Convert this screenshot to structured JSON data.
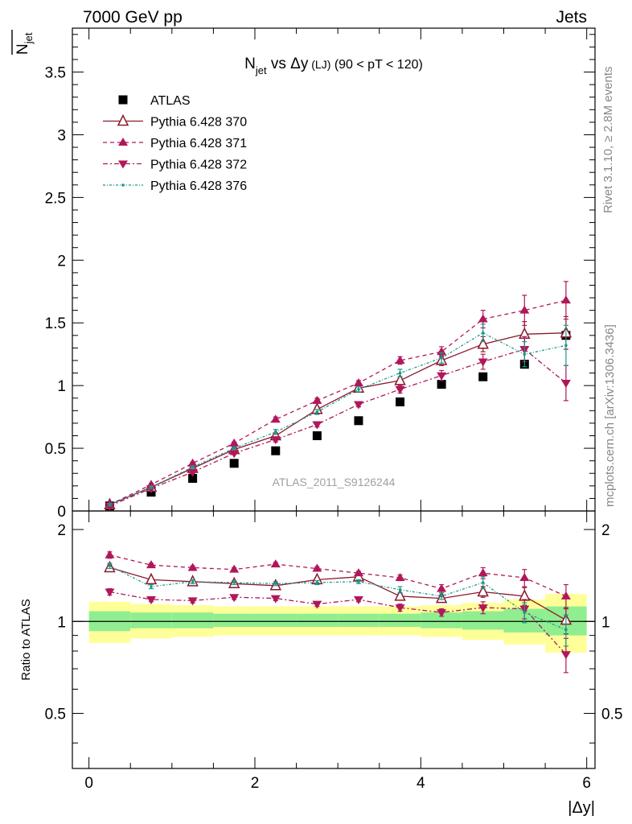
{
  "header": {
    "left": "7000 GeV pp",
    "right": "Jets",
    "side_top": "Rivet 3.1.10, ≥ 2.8M events",
    "side_bottom": "mcplots.cern.ch [arXiv:1306.3436]"
  },
  "colors": {
    "atlas": "#000000",
    "p370": "#8b1a2e",
    "p371": "#b0175a",
    "p372": "#b0175a",
    "p376": "#1a9a8a",
    "band_inner": "#90ee90",
    "band_outer": "#ffff99"
  },
  "chart_data": [
    {
      "type": "scatter",
      "panel": "main",
      "title_main": "N",
      "title_sub": "jet",
      "title_rest": " vs Δy",
      "title_small": " (LJ)",
      "title_range": " (90 < pT < 120)",
      "ylabel_main": "N",
      "ylabel_sub": "jet",
      "watermark": "ATLAS_2011_S9126244",
      "xlim": [
        -0.2,
        6.1
      ],
      "ylim": [
        0,
        3.85
      ],
      "yticks": [
        0,
        0.5,
        1,
        1.5,
        2,
        2.5,
        3,
        3.5
      ],
      "ytick_labels": [
        "0",
        "0.5",
        "1",
        "1.5",
        "2",
        "2.5",
        "3",
        "3.5"
      ],
      "legend_position": "top-left",
      "x": [
        0.25,
        0.75,
        1.25,
        1.75,
        2.25,
        2.75,
        3.25,
        3.75,
        4.25,
        4.75,
        5.25,
        5.75
      ],
      "series": [
        {
          "name": "ATLAS",
          "style": "data",
          "values": [
            0.04,
            0.15,
            0.26,
            0.38,
            0.48,
            0.6,
            0.72,
            0.87,
            1.01,
            1.07,
            1.17,
            1.4
          ]
        },
        {
          "name": "Pythia 6.428 370",
          "style": "solid",
          "marker": "triangle-up-open",
          "values": [
            0.05,
            0.19,
            0.34,
            0.49,
            0.6,
            0.81,
            0.98,
            1.04,
            1.2,
            1.33,
            1.41,
            1.42
          ],
          "errors": [
            0.01,
            0.01,
            0.01,
            0.01,
            0.02,
            0.02,
            0.02,
            0.03,
            0.04,
            0.06,
            0.1,
            0.13
          ]
        },
        {
          "name": "Pythia 6.428 371",
          "style": "dashed",
          "marker": "triangle-up-filled",
          "values": [
            0.05,
            0.21,
            0.38,
            0.54,
            0.73,
            0.88,
            1.02,
            1.2,
            1.27,
            1.53,
            1.6,
            1.68
          ],
          "errors": [
            0.01,
            0.01,
            0.01,
            0.01,
            0.02,
            0.02,
            0.02,
            0.03,
            0.04,
            0.07,
            0.12,
            0.15
          ]
        },
        {
          "name": "Pythia 6.428 372",
          "style": "dashdot",
          "marker": "triangle-down-filled",
          "values": [
            0.04,
            0.18,
            0.31,
            0.46,
            0.57,
            0.69,
            0.85,
            0.97,
            1.08,
            1.19,
            1.29,
            1.02
          ],
          "errors": [
            0.01,
            0.01,
            0.01,
            0.01,
            0.02,
            0.02,
            0.02,
            0.03,
            0.04,
            0.06,
            0.1,
            0.14
          ]
        },
        {
          "name": "Pythia 6.428 376",
          "style": "dashdotted-dense",
          "marker": "dot",
          "values": [
            0.05,
            0.19,
            0.35,
            0.5,
            0.63,
            0.79,
            0.97,
            1.1,
            1.22,
            1.42,
            1.25,
            1.32
          ],
          "errors": [
            0.01,
            0.01,
            0.01,
            0.01,
            0.02,
            0.02,
            0.02,
            0.03,
            0.04,
            0.07,
            0.1,
            0.16
          ]
        }
      ]
    },
    {
      "type": "scatter",
      "panel": "ratio",
      "ylabel": "Ratio to ATLAS",
      "xlabel": "|Δy|",
      "xlim": [
        -0.2,
        6.1
      ],
      "ylim": [
        0.33,
        2.3
      ],
      "xticks": [
        0,
        2,
        4,
        6
      ],
      "xtick_labels": [
        "0",
        "2",
        "4",
        "6"
      ],
      "yticks": [
        0.5,
        1,
        2
      ],
      "ytick_labels": [
        "0.5",
        "1",
        "2"
      ],
      "x_edges": [
        0,
        0.5,
        1,
        1.5,
        2,
        2.5,
        3,
        3.5,
        4,
        4.5,
        5,
        5.5,
        6
      ],
      "band_inner": [
        [
          0.93,
          1.08
        ],
        [
          0.95,
          1.07
        ],
        [
          0.95,
          1.07
        ],
        [
          0.96,
          1.06
        ],
        [
          0.96,
          1.06
        ],
        [
          0.96,
          1.06
        ],
        [
          0.96,
          1.06
        ],
        [
          0.96,
          1.06
        ],
        [
          0.95,
          1.07
        ],
        [
          0.94,
          1.08
        ],
        [
          0.92,
          1.1
        ],
        [
          0.9,
          1.12
        ]
      ],
      "band_outer": [
        [
          0.85,
          1.16
        ],
        [
          0.88,
          1.14
        ],
        [
          0.89,
          1.13
        ],
        [
          0.9,
          1.12
        ],
        [
          0.9,
          1.12
        ],
        [
          0.9,
          1.12
        ],
        [
          0.9,
          1.12
        ],
        [
          0.9,
          1.12
        ],
        [
          0.89,
          1.13
        ],
        [
          0.87,
          1.15
        ],
        [
          0.84,
          1.18
        ],
        [
          0.79,
          1.23
        ]
      ],
      "x": [
        0.25,
        0.75,
        1.25,
        1.75,
        2.25,
        2.75,
        3.25,
        3.75,
        4.25,
        4.75,
        5.25,
        5.75
      ],
      "series": [
        {
          "name": "Pythia 6.428 370",
          "style": "solid",
          "marker": "triangle-up-open",
          "values": [
            1.5,
            1.37,
            1.35,
            1.33,
            1.31,
            1.37,
            1.4,
            1.21,
            1.19,
            1.25,
            1.21,
            1.01
          ],
          "errors": [
            0.03,
            0.02,
            0.02,
            0.02,
            0.02,
            0.02,
            0.02,
            0.03,
            0.03,
            0.05,
            0.08,
            0.1
          ]
        },
        {
          "name": "Pythia 6.428 371",
          "style": "dashed",
          "marker": "triangle-up-filled",
          "values": [
            1.65,
            1.53,
            1.5,
            1.48,
            1.54,
            1.49,
            1.44,
            1.39,
            1.28,
            1.44,
            1.39,
            1.21
          ],
          "errors": [
            0.04,
            0.02,
            0.02,
            0.02,
            0.02,
            0.02,
            0.02,
            0.03,
            0.04,
            0.06,
            0.09,
            0.11
          ]
        },
        {
          "name": "Pythia 6.428 372",
          "style": "dashdot",
          "marker": "triangle-down-filled",
          "values": [
            1.25,
            1.18,
            1.17,
            1.2,
            1.19,
            1.14,
            1.18,
            1.11,
            1.07,
            1.11,
            1.1,
            0.78
          ],
          "errors": [
            0.03,
            0.02,
            0.02,
            0.02,
            0.02,
            0.02,
            0.02,
            0.03,
            0.03,
            0.05,
            0.08,
            0.1
          ]
        },
        {
          "name": "Pythia 6.428 376",
          "style": "dashdotted-dense",
          "marker": "dot",
          "values": [
            1.52,
            1.3,
            1.35,
            1.34,
            1.33,
            1.34,
            1.35,
            1.27,
            1.21,
            1.34,
            1.07,
            0.94
          ],
          "errors": [
            0.03,
            0.02,
            0.02,
            0.02,
            0.02,
            0.02,
            0.02,
            0.03,
            0.03,
            0.06,
            0.08,
            0.11
          ]
        }
      ]
    }
  ]
}
